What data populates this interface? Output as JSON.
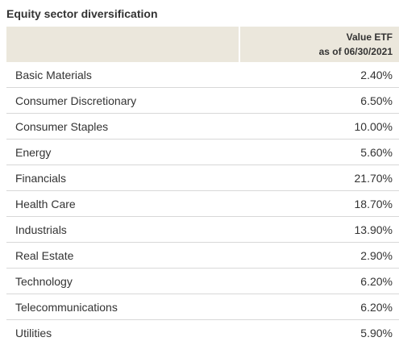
{
  "title": "Equity sector diversification",
  "table": {
    "header": {
      "sector": "",
      "value_line1": "Value ETF",
      "value_line2": "as of 06/30/2021"
    },
    "rows": [
      {
        "sector": "Basic Materials",
        "value": "2.40%"
      },
      {
        "sector": "Consumer Discretionary",
        "value": "6.50%"
      },
      {
        "sector": "Consumer Staples",
        "value": "10.00%"
      },
      {
        "sector": "Energy",
        "value": "5.60%"
      },
      {
        "sector": "Financials",
        "value": "21.70%"
      },
      {
        "sector": "Health Care",
        "value": "18.70%"
      },
      {
        "sector": "Industrials",
        "value": "13.90%"
      },
      {
        "sector": "Real Estate",
        "value": "2.90%"
      },
      {
        "sector": "Technology",
        "value": "6.20%"
      },
      {
        "sector": "Telecommunications",
        "value": "6.20%"
      },
      {
        "sector": "Utilities",
        "value": "5.90%"
      }
    ]
  },
  "colors": {
    "header_bg": "#ebe7dc",
    "row_divider": "#d8d8d8",
    "text": "#333333"
  }
}
